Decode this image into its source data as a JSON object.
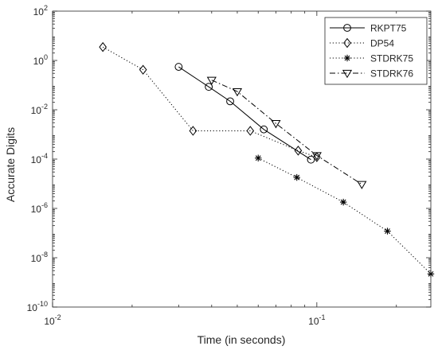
{
  "chart_data": {
    "type": "line",
    "title": "",
    "xlabel": "Time (in seconds)",
    "ylabel": "Accurate Digits",
    "x_scale": "log",
    "y_scale": "log",
    "xlim": [
      0.01,
      0.27
    ],
    "ylim": [
      1e-10,
      100
    ],
    "x_ticks": [
      {
        "value": 0.01,
        "base": "10",
        "exp": "-2"
      },
      {
        "value": 0.1,
        "base": "10",
        "exp": "-1"
      }
    ],
    "y_ticks": [
      {
        "value": 1e-10,
        "base": "10",
        "exp": "-10"
      },
      {
        "value": 1e-08,
        "base": "10",
        "exp": "-8"
      },
      {
        "value": 1e-06,
        "base": "10",
        "exp": "-6"
      },
      {
        "value": 0.0001,
        "base": "10",
        "exp": "-4"
      },
      {
        "value": 0.01,
        "base": "10",
        "exp": "-2"
      },
      {
        "value": 1,
        "base": "10",
        "exp": "0"
      },
      {
        "value": 100,
        "base": "10",
        "exp": "2"
      }
    ],
    "grid": false,
    "legend_position": "top-right",
    "series": [
      {
        "name": "RKPT75",
        "marker": "circle",
        "line_style": "solid",
        "color": "#000000",
        "points": [
          [
            0.03,
            0.55
          ],
          [
            0.039,
            0.085
          ],
          [
            0.047,
            0.022
          ],
          [
            0.063,
            0.0016
          ],
          [
            0.095,
            9.5e-05
          ]
        ]
      },
      {
        "name": "DP54",
        "marker": "diamond",
        "line_style": "dotted",
        "color": "#000000",
        "points": [
          [
            0.0155,
            3.5
          ],
          [
            0.022,
            0.42
          ],
          [
            0.034,
            0.0014
          ],
          [
            0.056,
            0.0014
          ],
          [
            0.085,
            0.00022
          ],
          [
            0.1,
            0.00012
          ]
        ]
      },
      {
        "name": "STDRK75",
        "marker": "star",
        "line_style": "dotted",
        "color": "#000000",
        "points": [
          [
            0.06,
            0.00011
          ],
          [
            0.084,
            1.8e-05
          ],
          [
            0.126,
            1.8e-06
          ],
          [
            0.185,
            1.2e-07
          ],
          [
            0.27,
            2.2e-09
          ]
        ]
      },
      {
        "name": "STDRK76",
        "marker": "triangle-down",
        "line_style": "dashdot",
        "color": "#000000",
        "points": [
          [
            0.04,
            0.16
          ],
          [
            0.05,
            0.055
          ],
          [
            0.07,
            0.0028
          ],
          [
            0.1,
            0.00014
          ],
          [
            0.148,
            9.5e-06
          ]
        ]
      }
    ]
  }
}
